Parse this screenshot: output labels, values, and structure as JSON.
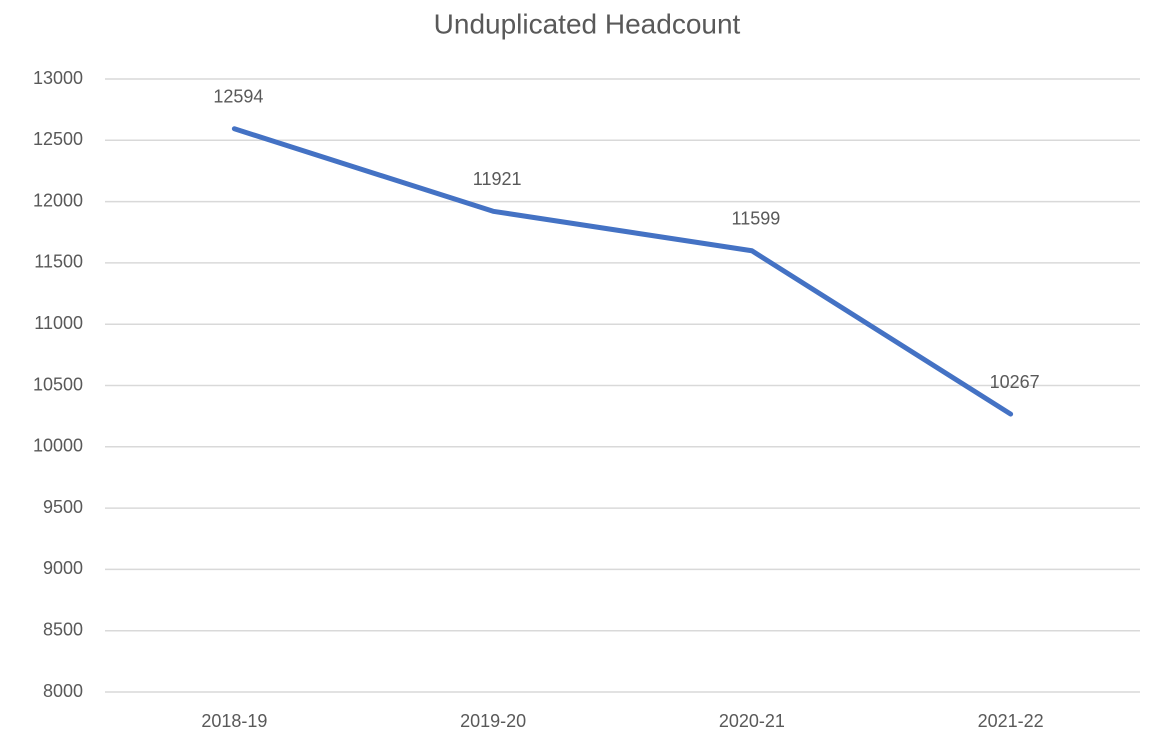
{
  "chart_data": {
    "type": "line",
    "title": "Unduplicated Headcount",
    "categories": [
      "2018-19",
      "2019-20",
      "2020-21",
      "2021-22"
    ],
    "series": [
      {
        "name": "Unduplicated Headcount",
        "color": "#4472c4",
        "values": [
          12594,
          11921,
          11599,
          10267
        ]
      }
    ],
    "ylim": [
      8000,
      13000
    ],
    "yticks": [
      8000,
      8500,
      9000,
      9500,
      10000,
      10500,
      11000,
      11500,
      12000,
      12500,
      13000
    ],
    "grid": true,
    "data_labels": true
  }
}
